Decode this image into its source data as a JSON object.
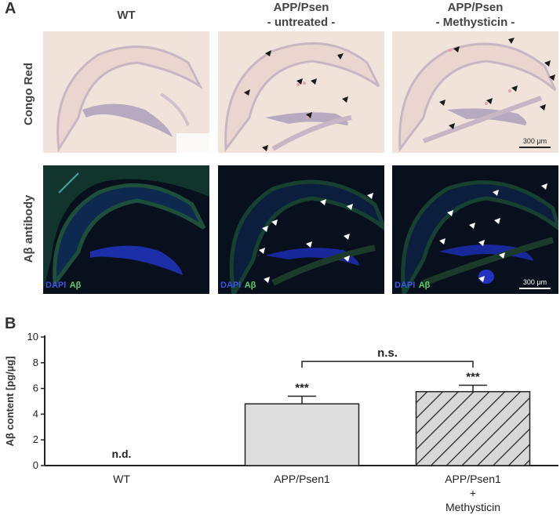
{
  "panel_a": {
    "letter": "A",
    "column_titles": [
      [
        "WT"
      ],
      [
        "APP/Psen",
        "- untreated -"
      ],
      [
        "APP/Psen",
        "- Methysticin -"
      ]
    ],
    "row_labels": [
      "Congo Red",
      "Aβ antibody"
    ],
    "channel_labels": {
      "dapi": "DAPI",
      "abeta": "Aβ"
    },
    "scale_bar_label": "300 μm",
    "colors": {
      "congo_bg": "#f1e3da",
      "fluor_bg": "#07101c",
      "arrow_dark": "#1a1a1a",
      "arrow_light": "#ffffff"
    }
  },
  "panel_b": {
    "letter": "B"
  },
  "chart_data": {
    "type": "bar",
    "categories": [
      [
        "WT"
      ],
      [
        "APP/Psen1"
      ],
      [
        "APP/Psen1",
        "+",
        "Methysticin"
      ]
    ],
    "values": [
      0,
      4.8,
      5.75
    ],
    "errors": [
      0,
      0.6,
      0.5
    ],
    "bar_fills": [
      "none",
      "#dddddd",
      "hatched"
    ],
    "value_labels": [
      "n.d.",
      "***",
      "***"
    ],
    "bracket": {
      "from": 1,
      "to": 2,
      "label": "n.s."
    },
    "ylabel": "Aβ content [pg/µg]",
    "xlabel": "",
    "ylim": [
      0,
      10
    ],
    "yticks": [
      0,
      2,
      4,
      6,
      8,
      10
    ],
    "grid": false
  }
}
